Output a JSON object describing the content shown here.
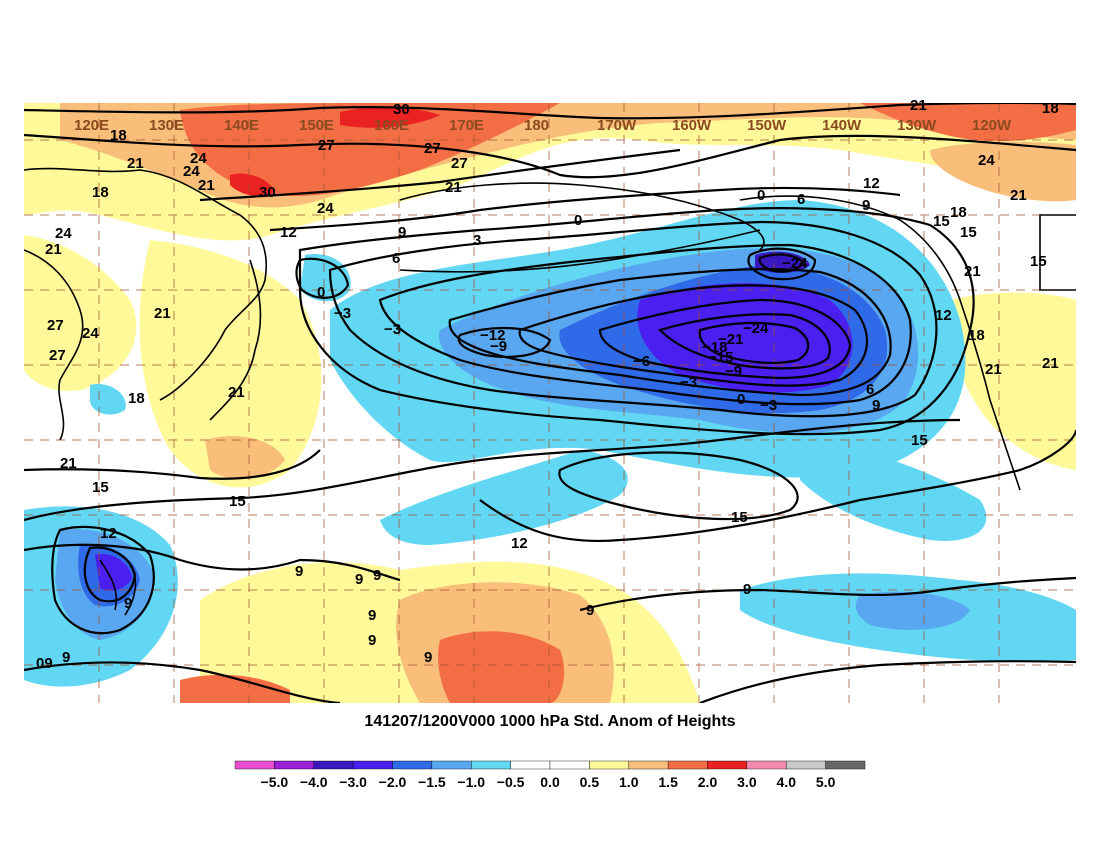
{
  "title": "141207/1200V000 1000 hPa Std. Anom of Heights",
  "longitude_labels": [
    "120E",
    "130E",
    "140E",
    "150E",
    "160E",
    "170E",
    "180",
    "170W",
    "160W",
    "150W",
    "140W",
    "130W",
    "120W"
  ],
  "colorbar": {
    "labels": [
      "−5.0",
      "−4.0",
      "−3.0",
      "−2.0",
      "−1.5",
      "−1.0",
      "−0.5",
      "0.0",
      "0.5",
      "1.0",
      "1.5",
      "2.0",
      "3.0",
      "4.0",
      "5.0"
    ],
    "colors": [
      "#e84ecf",
      "#9a1fd6",
      "#3a18c0",
      "#4a1fef",
      "#2f6ae9",
      "#59a7f0",
      "#62d7f3",
      "#ffffff",
      "#ffffff",
      "#fff99a",
      "#f9be7a",
      "#f46e45",
      "#eb2222",
      "#f28ab0",
      "#c8c8c8",
      "#686868"
    ]
  },
  "contour_labels": [
    {
      "text": "30"
    },
    {
      "text": "27"
    },
    {
      "text": "27"
    },
    {
      "text": "27"
    },
    {
      "text": "24"
    },
    {
      "text": "21"
    },
    {
      "text": "21"
    },
    {
      "text": "18"
    },
    {
      "text": "18"
    },
    {
      "text": "18"
    },
    {
      "text": "21"
    },
    {
      "text": "24"
    },
    {
      "text": "24"
    },
    {
      "text": "21"
    },
    {
      "text": "30"
    },
    {
      "text": "12"
    },
    {
      "text": "9"
    },
    {
      "text": "6"
    },
    {
      "text": "3"
    },
    {
      "text": "0"
    },
    {
      "text": "0"
    },
    {
      "text": "0"
    },
    {
      "text": "6"
    },
    {
      "text": "9"
    },
    {
      "text": "12"
    },
    {
      "text": "15"
    },
    {
      "text": "18"
    },
    {
      "text": "15"
    },
    {
      "text": "15"
    },
    {
      "text": "21"
    },
    {
      "text": "24"
    },
    {
      "text": "21"
    },
    {
      "text": "12"
    },
    {
      "text": "18"
    },
    {
      "text": "21"
    },
    {
      "text": "21"
    },
    {
      "text": "−3"
    },
    {
      "text": "−12"
    },
    {
      "text": "−9"
    },
    {
      "text": "−6"
    },
    {
      "text": "−3"
    },
    {
      "text": "0"
    },
    {
      "text": "−3"
    },
    {
      "text": "−24"
    },
    {
      "text": "−21"
    },
    {
      "text": "−18"
    },
    {
      "text": "−15"
    },
    {
      "text": "−9"
    },
    {
      "text": "6"
    },
    {
      "text": "9"
    },
    {
      "text": "15"
    },
    {
      "text": "15"
    },
    {
      "text": "12"
    },
    {
      "text": "15"
    },
    {
      "text": "9"
    },
    {
      "text": "9"
    },
    {
      "text": "9"
    },
    {
      "text": "9"
    },
    {
      "text": "9"
    },
    {
      "text": "9"
    },
    {
      "text": "9"
    },
    {
      "text": "9"
    },
    {
      "text": "24"
    },
    {
      "text": "21"
    },
    {
      "text": "27"
    },
    {
      "text": "24"
    },
    {
      "text": "27"
    },
    {
      "text": "21"
    },
    {
      "text": "18"
    },
    {
      "text": "21"
    },
    {
      "text": "21"
    },
    {
      "text": "15"
    },
    {
      "text": "12"
    },
    {
      "text": "9"
    },
    {
      "text": "9"
    },
    {
      "text": "09"
    },
    {
      "text": "−24"
    },
    {
      "text": "−3"
    }
  ]
}
